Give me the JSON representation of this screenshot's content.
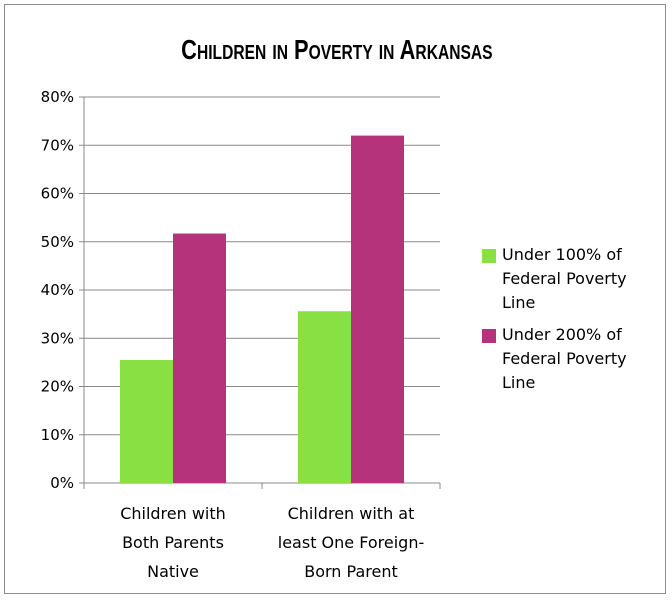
{
  "chart_data": {
    "type": "bar",
    "title": "Children in Poverty in Arkansas",
    "categories": [
      [
        "Children with",
        "Both Parents",
        "Native"
      ],
      [
        "Children with at",
        "least One Foreign-",
        "Born Parent"
      ]
    ],
    "series": [
      {
        "name": "Under 100% of Federal Poverty Line",
        "color": "#88e043",
        "values": [
          0.255,
          0.356
        ]
      },
      {
        "name": "Under 200% of Federal Poverty Line",
        "color": "#b5337a",
        "values": [
          0.517,
          0.72
        ]
      }
    ],
    "ylim": [
      0,
      0.8
    ],
    "yticks": [
      "0%",
      "10%",
      "20%",
      "30%",
      "40%",
      "50%",
      "60%",
      "70%",
      "80%"
    ],
    "grid": true,
    "legend_position": "right"
  }
}
